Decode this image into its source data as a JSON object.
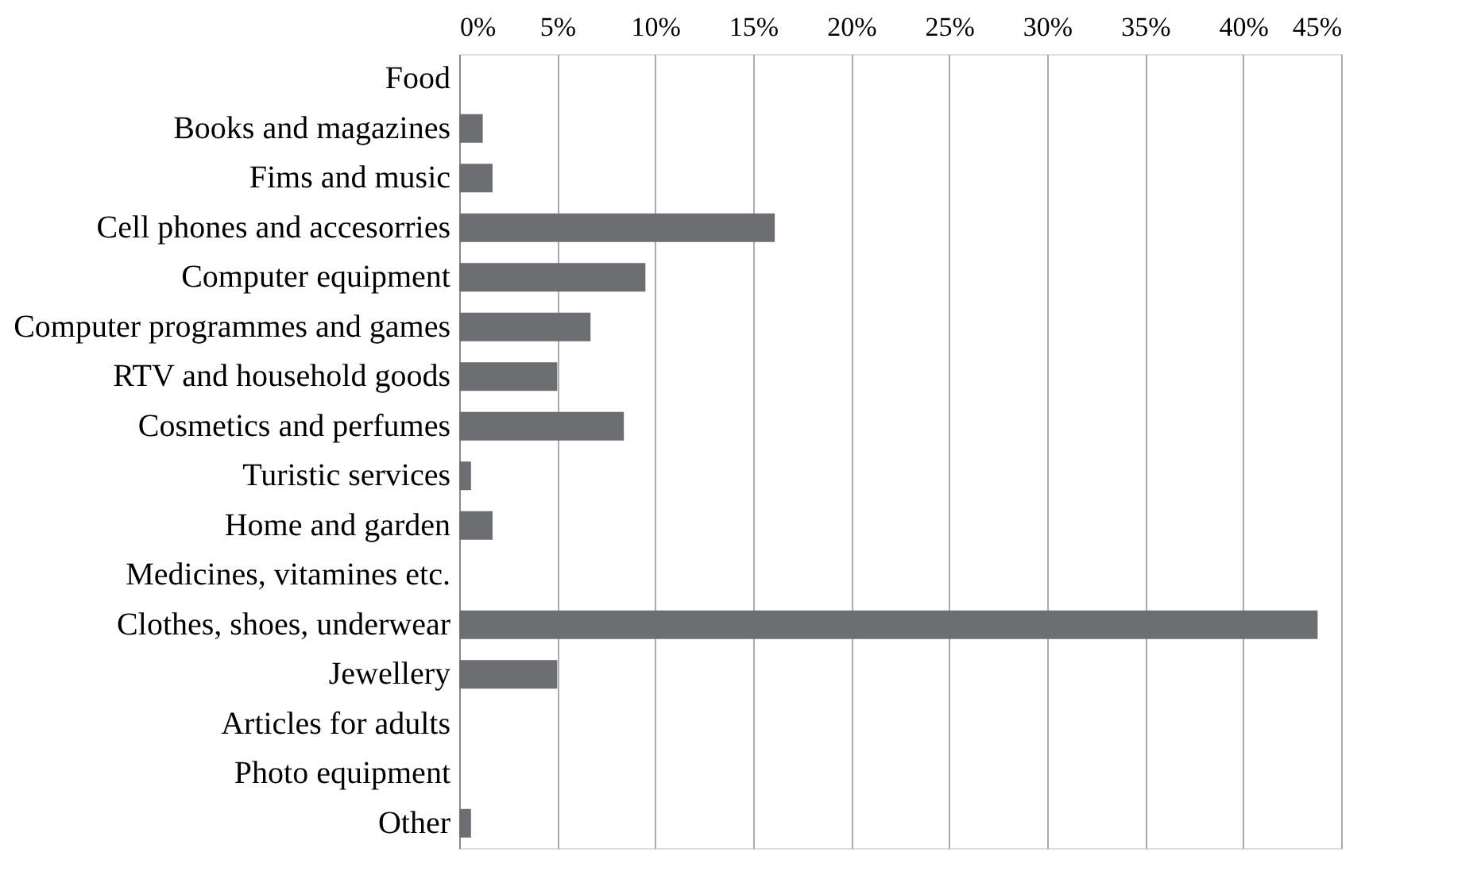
{
  "chart_data": {
    "type": "bar",
    "orientation": "horizontal",
    "categories": [
      "Food",
      "Books and magazines",
      "Fims and music",
      "Cell phones and accesorries",
      "Computer equipment ",
      "Computer programmes and games",
      "RTV and household goods",
      "Cosmetics and perfumes",
      "Turistic services",
      "Home and garden",
      "Medicines, vitamines etc.",
      "Clothes, shoes, underwear",
      "Jewellery",
      "Articles for adults",
      "Photo equipment",
      "Other"
    ],
    "values": [
      0,
      1.2,
      1.7,
      16.1,
      9.5,
      6.7,
      5.0,
      8.4,
      0.6,
      1.7,
      0,
      43.8,
      5.0,
      0,
      0,
      0.6
    ],
    "color": "#6d6e71",
    "xlim": [
      0,
      45
    ],
    "xticks": [
      {
        "value": 0,
        "label": "0%"
      },
      {
        "value": 5,
        "label": "5%"
      },
      {
        "value": 10,
        "label": "10%"
      },
      {
        "value": 15,
        "label": "15%"
      },
      {
        "value": 20,
        "label": "20%"
      },
      {
        "value": 25,
        "label": "25%"
      },
      {
        "value": 30,
        "label": "30%"
      },
      {
        "value": 35,
        "label": "35%"
      },
      {
        "value": 40,
        "label": "40%"
      },
      {
        "value": 45,
        "label": "45%"
      }
    ],
    "grid": "x"
  }
}
